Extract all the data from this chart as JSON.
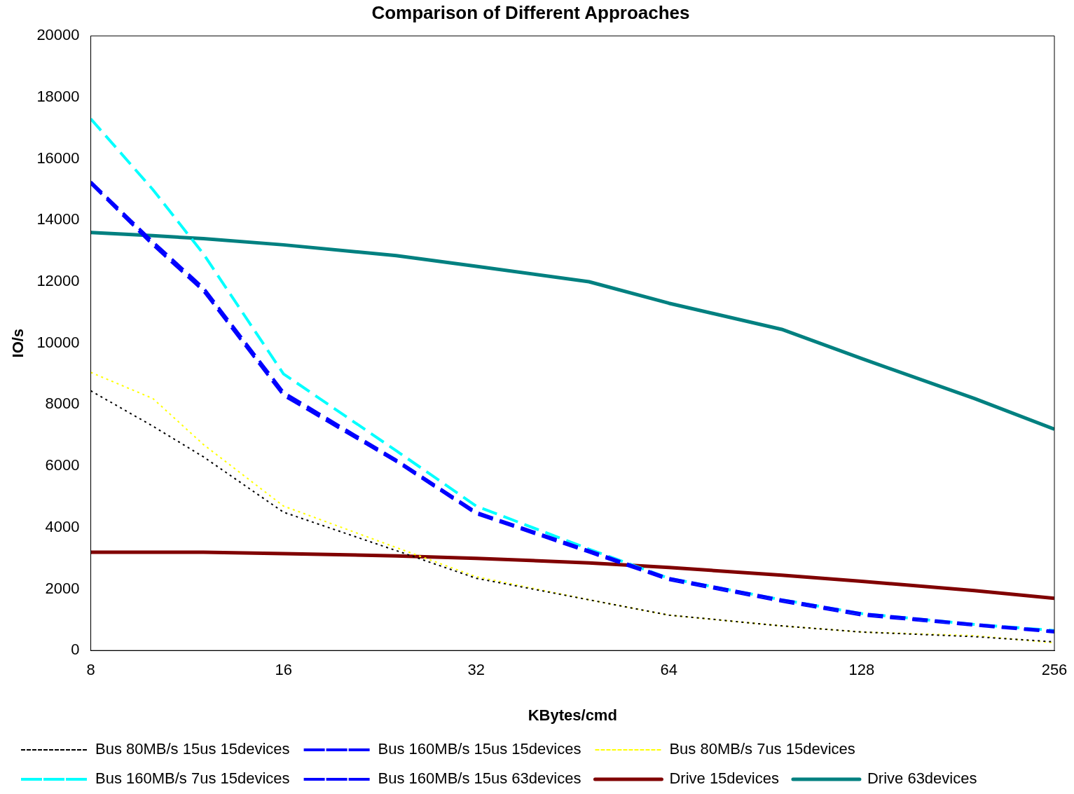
{
  "chart_data": {
    "type": "line",
    "title": "Comparison of Different Approaches",
    "xlabel": "KBytes/cmd",
    "ylabel": "IO/s",
    "x": [
      8,
      10,
      12,
      16,
      24,
      32,
      48,
      64,
      96,
      128,
      192,
      256
    ],
    "log": "x",
    "xlim": [
      8,
      256
    ],
    "xticks": [
      8,
      16,
      32,
      64,
      128,
      256
    ],
    "ylim": [
      0,
      20000
    ],
    "yticks": [
      0,
      2000,
      4000,
      6000,
      8000,
      10000,
      12000,
      14000,
      16000,
      18000,
      20000
    ],
    "grid": false,
    "legend": "bottom",
    "marker": "none",
    "series": [
      {
        "name": "Bus 80MB/s 15us 15devices",
        "color": "#000000",
        "line_style": "dotted",
        "values": [
          8450,
          7300,
          6300,
          4500,
          3250,
          2350,
          1650,
          1150,
          800,
          600,
          450,
          280
        ]
      },
      {
        "name": "Bus 160MB/s 15us 15devices",
        "color": "#0000ff",
        "line_style": "dashed",
        "values": [
          15250,
          13300,
          11800,
          8400,
          6200,
          4500,
          3250,
          2350,
          1650,
          1200,
          850,
          630
        ]
      },
      {
        "name": "Bus 80MB/s 7us 15devices",
        "color": "#ffff00",
        "line_style": "dotted",
        "values": [
          9050,
          8200,
          6700,
          4700,
          3350,
          2400,
          1650,
          1150,
          800,
          600,
          480,
          250
        ]
      },
      {
        "name": "Bus 160MB/s 7us 15devices",
        "color": "#00ffff",
        "line_style": "dashed",
        "values": [
          17300,
          15000,
          12900,
          9000,
          6500,
          4700,
          3300,
          2350,
          1650,
          1200,
          850,
          650
        ]
      },
      {
        "name": "Bus 160MB/s 15us 63devices",
        "color": "#0000ff",
        "line_style": "dashed",
        "values": [
          15200,
          13200,
          11700,
          8300,
          6150,
          4450,
          3200,
          2300,
          1600,
          1150,
          820,
          600
        ]
      },
      {
        "name": "Drive 15devices",
        "color": "#800000",
        "line_style": "solid",
        "values": [
          3200,
          3200,
          3200,
          3150,
          3080,
          3000,
          2850,
          2700,
          2450,
          2250,
          1950,
          1700
        ]
      },
      {
        "name": "Drive 63devices",
        "color": "#008080",
        "line_style": "solid",
        "values": [
          13600,
          13500,
          13400,
          13200,
          12850,
          12500,
          12000,
          11300,
          10450,
          9500,
          8200,
          7200
        ]
      }
    ]
  }
}
